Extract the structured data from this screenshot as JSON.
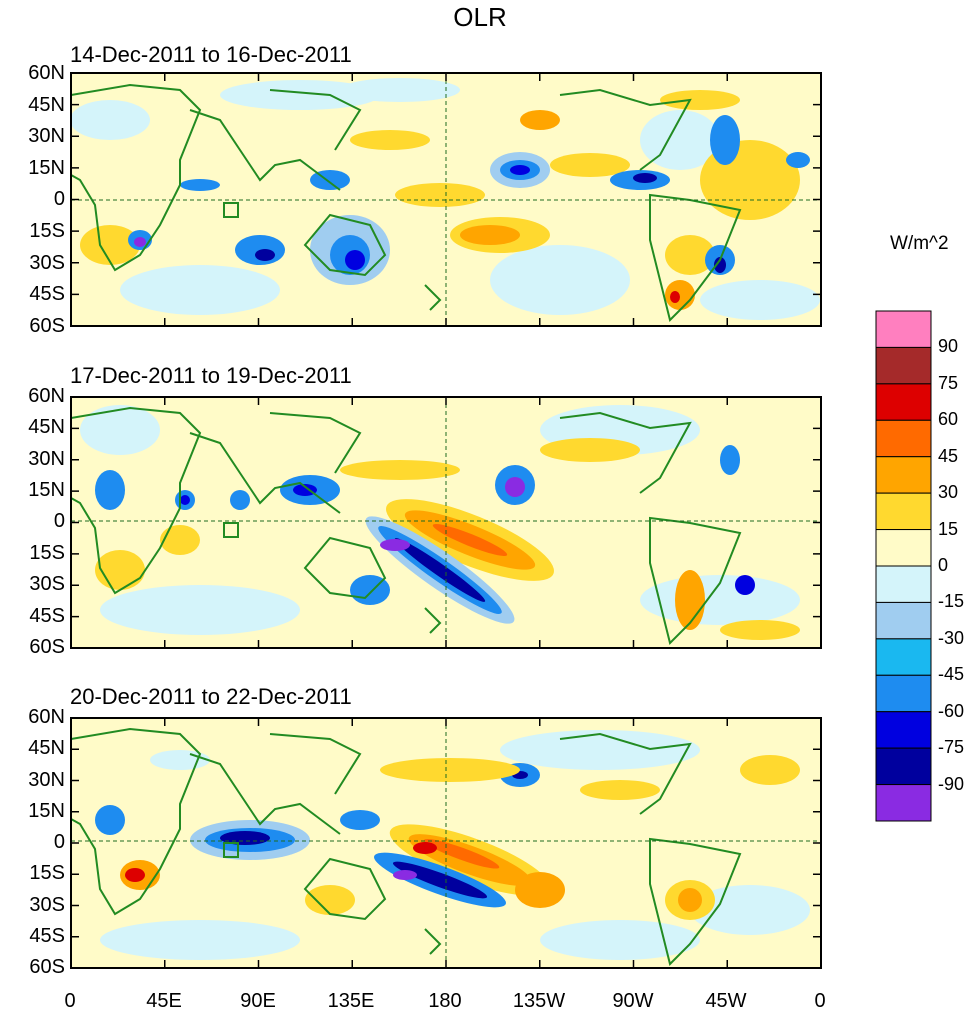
{
  "page_title": "OLR",
  "units_label": "W/m^2",
  "panels": [
    {
      "title": "14-Dec-2011 to 16-Dec-2011"
    },
    {
      "title": "17-Dec-2011 to 19-Dec-2011"
    },
    {
      "title": "20-Dec-2011 to 22-Dec-2011"
    }
  ],
  "lat_ticks": [
    "60N",
    "45N",
    "30N",
    "15N",
    "0",
    "15S",
    "30S",
    "45S",
    "60S"
  ],
  "lon_ticks": [
    "0",
    "45E",
    "90E",
    "135E",
    "180",
    "135W",
    "90W",
    "45W",
    "0"
  ],
  "colorbar": {
    "labels": [
      "90",
      "75",
      "60",
      "45",
      "30",
      "15",
      "0",
      "-15",
      "-30",
      "-45",
      "-60",
      "-75",
      "-90"
    ],
    "colors": [
      "#ff7fbf",
      "#a52a2a",
      "#dd0000",
      "#ff6a00",
      "#ffa500",
      "#ffd92f",
      "#fffbc8",
      "#d4f4fa",
      "#a0cdf0",
      "#1ab8f0",
      "#1e8cf0",
      "#0000e0",
      "#00009e",
      "#8a2be2"
    ]
  },
  "chart_data": {
    "type": "heatmap",
    "title": "OLR",
    "colorbar_units": "W/m^2",
    "contour_levels": [
      -90,
      -75,
      -60,
      -45,
      -30,
      -15,
      0,
      15,
      30,
      45,
      60,
      75,
      90
    ],
    "lon_range": [
      0,
      360
    ],
    "lat_range": [
      -60,
      60
    ],
    "panels": [
      {
        "title": "14-Dec-2011 to 16-Dec-2011"
      },
      {
        "title": "17-Dec-2011 to 19-Dec-2011"
      },
      {
        "title": "20-Dec-2011 to 22-Dec-2011"
      }
    ]
  }
}
